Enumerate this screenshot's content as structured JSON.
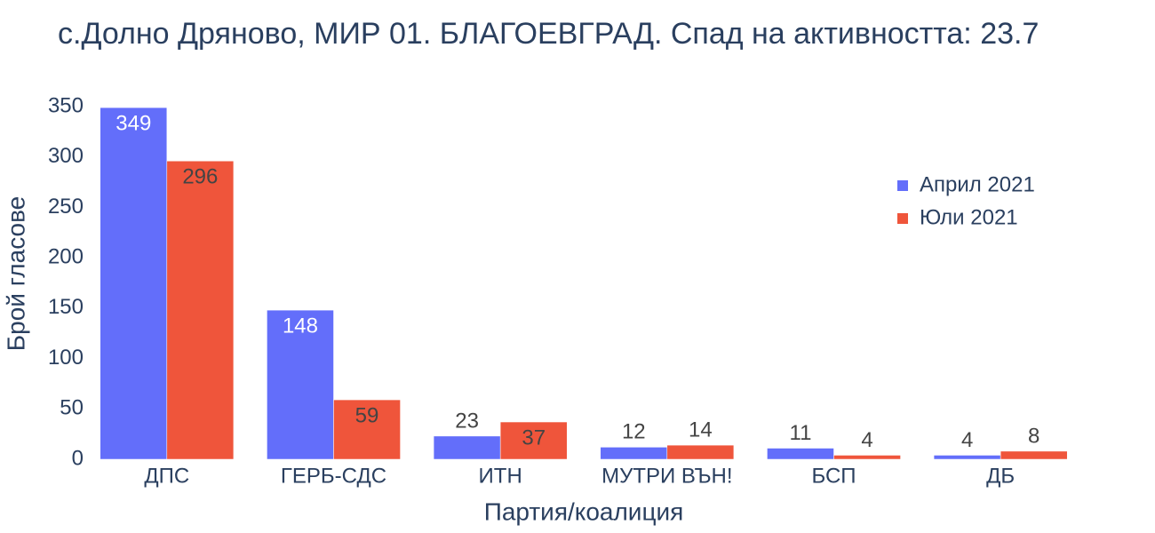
{
  "chart_data": {
    "type": "bar",
    "title": "с.Долно Дряново, МИР 01. БЛАГОЕВГРАД. Спад на активността: 23.7",
    "x_label": "Партия/коалиция",
    "y_label": "Брой гласове",
    "categories": [
      "ДПС",
      "ГЕРБ-СДС",
      "ИТН",
      "МУТРИ ВЪН!",
      "БСП",
      "ДБ"
    ],
    "series": [
      {
        "name": "Април 2021",
        "color": "#636efa",
        "values": [
          349,
          148,
          23,
          12,
          11,
          4
        ]
      },
      {
        "name": "Юли 2021",
        "color": "#ef553b",
        "values": [
          296,
          59,
          37,
          14,
          4,
          8
        ]
      }
    ],
    "ylim": [
      0,
      350
    ],
    "yticks": [
      0,
      50,
      100,
      150,
      200,
      250,
      300,
      350
    ],
    "grid": false,
    "legend": "top-right"
  }
}
